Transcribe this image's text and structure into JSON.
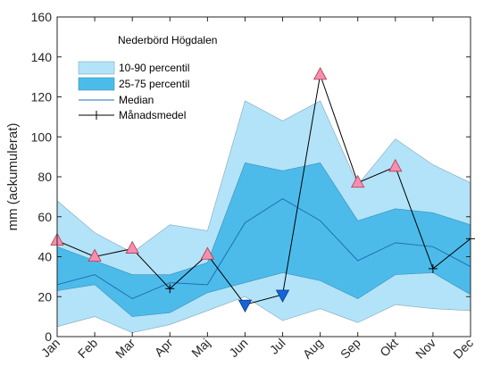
{
  "chart_data": {
    "type": "area",
    "title": "Nederbörd Högdalen",
    "ylabel": "mm (ackumulerat)",
    "xlabel": "",
    "ylim": [
      0,
      160
    ],
    "yticks": [
      0,
      20,
      40,
      60,
      80,
      100,
      120,
      140,
      160
    ],
    "categories": [
      "Jan",
      "Feb",
      "Mar",
      "Apr",
      "Maj",
      "Jun",
      "Jul",
      "Aug",
      "Sep",
      "Okt",
      "Nov",
      "Dec"
    ],
    "grid": false,
    "legend_position": "top-left",
    "series": [
      {
        "name": "10-90 percentil",
        "kind": "band",
        "color": "#b3e3f8",
        "low": [
          5,
          10,
          2,
          6,
          13,
          20,
          8,
          14,
          7,
          16,
          14,
          13
        ],
        "high": [
          68,
          52,
          42,
          56,
          53,
          118,
          108,
          118,
          76,
          99,
          86,
          77
        ]
      },
      {
        "name": "25-75 percentil",
        "kind": "band",
        "color": "#4cbbea",
        "low": [
          23,
          26,
          10,
          12,
          22,
          27,
          32,
          28,
          19,
          31,
          32,
          21
        ],
        "high": [
          45,
          38,
          31,
          31,
          37,
          87,
          83,
          87,
          58,
          64,
          62,
          56
        ]
      },
      {
        "name": "Median",
        "kind": "line",
        "color": "#1f6fb4",
        "values": [
          26,
          31,
          19,
          27,
          26,
          57,
          69,
          58,
          38,
          47,
          45,
          35
        ]
      },
      {
        "name": "Månadsmedel",
        "kind": "line-markers",
        "color": "#000000",
        "values": [
          48,
          40,
          44,
          24,
          41,
          16,
          21,
          131,
          77,
          85,
          34,
          49
        ]
      }
    ],
    "markers": {
      "high_indices": [
        0,
        1,
        2,
        4,
        7,
        8,
        9
      ],
      "high_color": "#f48fb1",
      "low_indices": [
        5,
        6
      ],
      "low_color": "#1565d8"
    }
  }
}
